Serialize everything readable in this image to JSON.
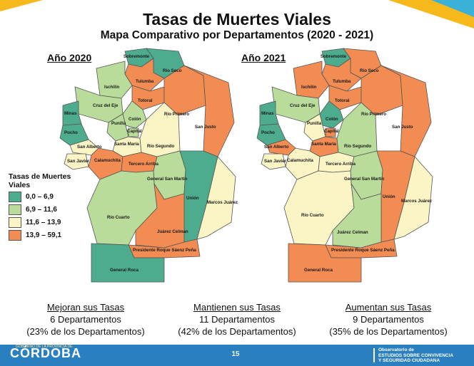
{
  "title": "Tasas de Muertes Viales",
  "subtitle": "Mapa Comparativo por Departamentos (2020 - 2021)",
  "maps": {
    "left_year": "Año 2020",
    "right_year": "Año 2021"
  },
  "legend": {
    "title": "Tasas de Muertes Viales",
    "items": [
      {
        "label": "0,0 – 6,9",
        "color": "#4eac8e"
      },
      {
        "label": "6,9 – 11,6",
        "color": "#b9dc9a"
      },
      {
        "label": "11,6 – 13,9",
        "color": "#fbf5c6"
      },
      {
        "label": "13,9 – 59,1",
        "color": "#f28c52"
      }
    ]
  },
  "departments": {
    "sobremonte": "Sobremonte",
    "rio_seco": "Río Seco",
    "tulumba": "Tulumba",
    "ischilin": "Ischilín",
    "cruz_del_eje": "Cruz del Eje",
    "totoral": "Totoral",
    "minas": "Minas",
    "colon": "Colón",
    "punilla": "Punilla",
    "rio_primero": "Río Primero",
    "capital": "Capital",
    "pocho": "Pocho",
    "san_justo": "San Justo",
    "san_alberto": "San Alberto",
    "santa_maria": "Santa María",
    "rio_segundo": "Río Segundo",
    "san_javier": "San Javier",
    "calamuchita": "Calamuchita",
    "tercero_arriba": "Tercero Arriba",
    "general_san_martin": "General San Martín",
    "union": "Unión",
    "marcos_juarez": "Marcos Juárez",
    "rio_cuarto": "Río Cuarto",
    "juarez_celman": "Juárez Celman",
    "presidente_roque_saenz_pena": "Presidente Roque Sáenz Peña",
    "general_roca": "General Roca"
  },
  "summary": [
    {
      "head": "Mejoran sus Tasas",
      "count": "6 Departamentos",
      "pct": "(23% de los Departamentos)"
    },
    {
      "head": "Mantienen sus Tasas",
      "count": "11 Departamentos",
      "pct": "(42% de los Departamentos)"
    },
    {
      "head": "Aumentan sus Tasas",
      "count": "9 Departamentos",
      "pct": "(35% de los Departamentos)"
    }
  ],
  "footer": {
    "logo": "CÓRDOBA",
    "logo_top": "GOBIERNO DE LA PROVINCIA DE",
    "page": "15",
    "right_line1": "Observatorio de",
    "right_line2": "ESTUDIOS SOBRE CONVIVENCIA",
    "right_line3": "Y SEGURIDAD CIUDADANA"
  }
}
